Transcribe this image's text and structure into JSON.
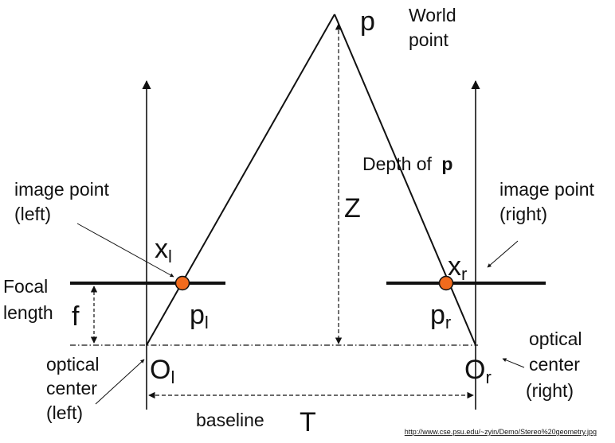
{
  "labels": {
    "p": "p",
    "world_point_line1": "World",
    "world_point_line2": "point",
    "depth_of": "Depth of",
    "depth_p": "p",
    "Z": "Z",
    "image_point_left_line1": "image point",
    "image_point_left_line2": "(left)",
    "image_point_right_line1": "image point",
    "image_point_right_line2": "(right)",
    "x": "x",
    "x_l_sub": "l",
    "x_r_sub": "r",
    "focal_line1": "Focal",
    "focal_line2": "length",
    "f": "f",
    "p_l_main": "p",
    "p_l_sub": "l",
    "p_r_main": "p",
    "p_r_sub": "r",
    "O_l_main": "O",
    "O_l_sub": "l",
    "O_r_main": "O",
    "O_r_sub": "r",
    "optical_center_left_line1": "optical",
    "optical_center_left_line2": "center",
    "optical_center_left_line3": "(left)",
    "optical_center_right_line1": "optical",
    "optical_center_right_line2": "center",
    "optical_center_right_line3": "(right)",
    "baseline": "baseline",
    "T": "T",
    "source_url": "http://www.cse.psu.edu/~zyin/Demo/Stereo%20geometry.jpg"
  },
  "colors": {
    "line": "#111111",
    "point_fill": "#f26b1d",
    "point_stroke": "#111111"
  }
}
